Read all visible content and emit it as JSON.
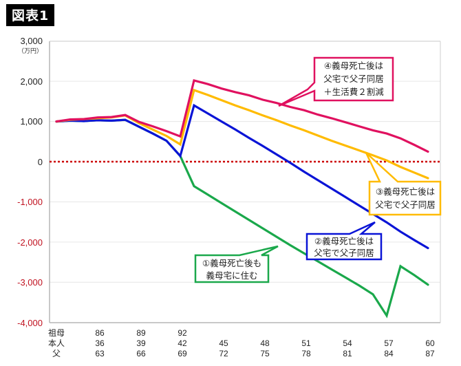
{
  "figure_label": "図表1",
  "chart_data": {
    "type": "line",
    "title": "図表1",
    "ylabel": "（万円）",
    "xlabel": "",
    "ylim": [
      -4000,
      3000
    ],
    "yticks": [
      3000,
      2000,
      1000,
      0,
      -1000,
      -2000,
      -3000,
      -4000
    ],
    "ytick_labels": [
      "3,000",
      "2,000",
      "1,000",
      "0",
      "-1,000",
      "-2,000",
      "-3,000",
      "-4,000"
    ],
    "grid": true,
    "zero_line": {
      "value": 0,
      "style": "dotted",
      "color": "#cc0000"
    },
    "x": [
      33,
      34,
      35,
      36,
      37,
      38,
      39,
      40,
      41,
      42,
      43,
      44,
      45,
      46,
      47,
      48,
      49,
      50,
      51,
      52,
      53,
      54,
      55,
      56,
      57,
      58,
      59,
      60
    ],
    "x_tick_rows": [
      {
        "label": "祖母",
        "ticks": [
          {
            "x": 36,
            "v": "86"
          },
          {
            "x": 39,
            "v": "89"
          },
          {
            "x": 42,
            "v": "92"
          }
        ]
      },
      {
        "label": "本人",
        "ticks": [
          {
            "x": 36,
            "v": "36"
          },
          {
            "x": 39,
            "v": "39"
          },
          {
            "x": 42,
            "v": "42"
          },
          {
            "x": 45,
            "v": "45"
          },
          {
            "x": 48,
            "v": "48"
          },
          {
            "x": 51,
            "v": "51"
          },
          {
            "x": 54,
            "v": "54"
          },
          {
            "x": 57,
            "v": "57"
          },
          {
            "x": 60,
            "v": "60"
          }
        ]
      },
      {
        "label": "父",
        "ticks": [
          {
            "x": 36,
            "v": "63"
          },
          {
            "x": 39,
            "v": "66"
          },
          {
            "x": 42,
            "v": "69"
          },
          {
            "x": 45,
            "v": "72"
          },
          {
            "x": 48,
            "v": "75"
          },
          {
            "x": 51,
            "v": "78"
          },
          {
            "x": 54,
            "v": "81"
          },
          {
            "x": 57,
            "v": "84"
          },
          {
            "x": 60,
            "v": "87"
          }
        ]
      }
    ],
    "series": [
      {
        "name": "①義母死亡後も義母宅に住む",
        "color": "#1aa84b",
        "values": [
          1000,
          1020,
          1010,
          1030,
          1020,
          1040,
          870,
          700,
          520,
          140,
          -610,
          -820,
          -1030,
          -1240,
          -1450,
          -1660,
          -1870,
          -2080,
          -2280,
          -2480,
          -2680,
          -2880,
          -3080,
          -3300,
          -3830,
          -2600,
          -2820,
          -3060
        ]
      },
      {
        "name": "②義母死亡後は父宅で父子同居",
        "color": "#0a14d6",
        "values": [
          1000,
          1020,
          1010,
          1030,
          1020,
          1040,
          870,
          700,
          520,
          140,
          1400,
          1200,
          1000,
          800,
          590,
          390,
          180,
          -30,
          -250,
          -460,
          -670,
          -880,
          -1090,
          -1300,
          -1510,
          -1740,
          -1950,
          -2150
        ]
      },
      {
        "name": "③義母死亡後は父宅で父子同居",
        "color": "#ffbb00",
        "values": [
          1000,
          1040,
          1060,
          1080,
          1100,
          1150,
          960,
          800,
          640,
          430,
          1780,
          1660,
          1530,
          1400,
          1280,
          1150,
          1030,
          900,
          780,
          650,
          520,
          400,
          280,
          160,
          30,
          -130,
          -270,
          -410
        ]
      },
      {
        "name": "④義母死亡後は父宅で父子同居＋生活費２割減",
        "color": "#e0115f",
        "values": [
          1000,
          1050,
          1060,
          1100,
          1110,
          1160,
          990,
          880,
          760,
          630,
          2020,
          1930,
          1820,
          1730,
          1650,
          1540,
          1460,
          1360,
          1280,
          1170,
          1080,
          980,
          880,
          780,
          700,
          580,
          420,
          250
        ]
      }
    ],
    "annotations": [
      {
        "id": "c1",
        "lines": [
          "①義母死亡後も",
          "義母宅に住む"
        ],
        "color": "#1aa84b"
      },
      {
        "id": "c2",
        "lines": [
          "②義母死亡後は",
          "父宅で父子同居"
        ],
        "color": "#0a14d6"
      },
      {
        "id": "c3",
        "lines": [
          "③義母死亡後は",
          "父宅で父子同居"
        ],
        "color": "#ffbb00"
      },
      {
        "id": "c4",
        "lines": [
          "④義母死亡後は",
          "父宅で父子同居",
          "＋生活費２割減"
        ],
        "color": "#e0115f"
      }
    ]
  },
  "axis": {
    "unit": "（万円）",
    "y_labels": {
      "p3000": "3,000",
      "p2000": "2,000",
      "p1000": "1,000",
      "z0": "0",
      "m1000": "-1,000",
      "m2000": "-2,000",
      "m3000": "-3,000",
      "m4000": "-4,000"
    },
    "positive_color": "#222222",
    "negative_color": "#c0111f",
    "row_labels": {
      "grandmother": "祖母",
      "self": "本人",
      "father": "父"
    }
  },
  "callouts": {
    "c1": {
      "line1": "①義母死亡後も",
      "line2": "義母宅に住む"
    },
    "c2": {
      "line1": "②義母死亡後は",
      "line2": "父宅で父子同居"
    },
    "c3": {
      "line1": "③義母死亡後は",
      "line2": "父宅で父子同居"
    },
    "c4": {
      "line1": "④義母死亡後は",
      "line2": "父宅で父子同居",
      "line3": "＋生活費２割減"
    }
  }
}
